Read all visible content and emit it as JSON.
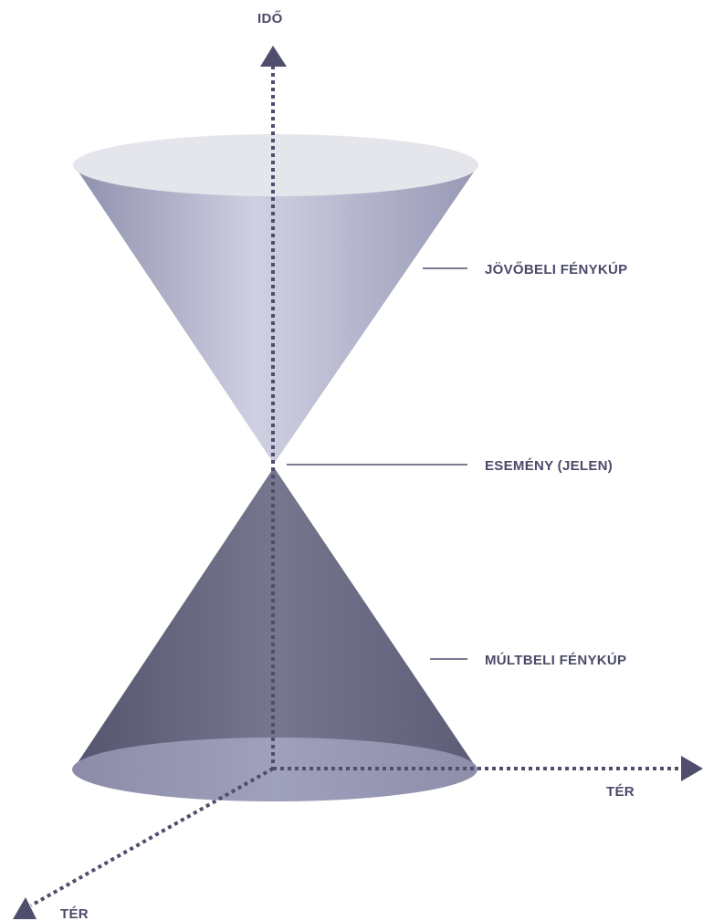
{
  "colors": {
    "text": "#4a4a68",
    "axis": "#4f4e6c",
    "future_cone_top": "#e5e6ec",
    "future_cone_light": "#cfd0e2",
    "future_cone_dark": "#8e8fac",
    "past_cone_light": "#7b7b96",
    "past_cone_dark": "#55556f",
    "past_cone_base": "#8c8ca8"
  },
  "axes": {
    "time_label": "IDŐ",
    "space_x_label": "TÉR",
    "space_z_label": "TÉR"
  },
  "labels": {
    "future_cone": "JÖVŐBELI FÉNYKÚP",
    "event": "ESEMÉNY (JELEN)",
    "past_cone": "MÚLTBELI FÉNYKÚP"
  }
}
